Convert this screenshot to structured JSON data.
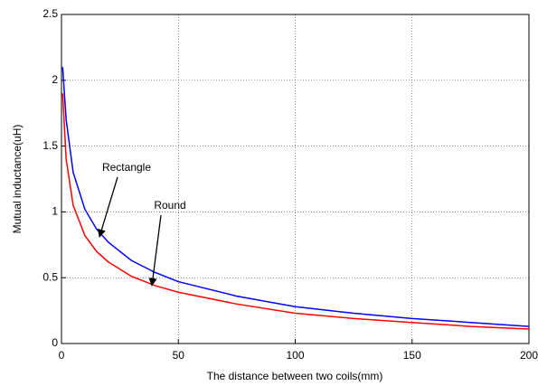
{
  "chart_data": {
    "type": "line",
    "xlabel": "The distance between two coils(mm)",
    "ylabel": "Mutual inductance(uH)",
    "x": [
      0.5,
      2,
      5,
      10,
      15,
      20,
      30,
      40,
      50,
      75,
      100,
      125,
      150,
      175,
      200
    ],
    "series": [
      {
        "name": "Rectangle",
        "color": "#0000ff",
        "values": [
          2.1,
          1.7,
          1.3,
          1.02,
          0.87,
          0.77,
          0.63,
          0.54,
          0.47,
          0.36,
          0.28,
          0.23,
          0.19,
          0.16,
          0.13
        ]
      },
      {
        "name": "Round",
        "color": "#ff0000",
        "values": [
          1.9,
          1.4,
          1.05,
          0.82,
          0.7,
          0.62,
          0.51,
          0.44,
          0.39,
          0.3,
          0.23,
          0.19,
          0.16,
          0.13,
          0.11
        ]
      }
    ],
    "xlim": [
      0,
      200
    ],
    "xticks": [
      0,
      50,
      100,
      150,
      200
    ],
    "ylim": [
      0,
      2.5
    ],
    "yticks": [
      0,
      0.5,
      1,
      1.5,
      2,
      2.5
    ],
    "grid": true
  }
}
